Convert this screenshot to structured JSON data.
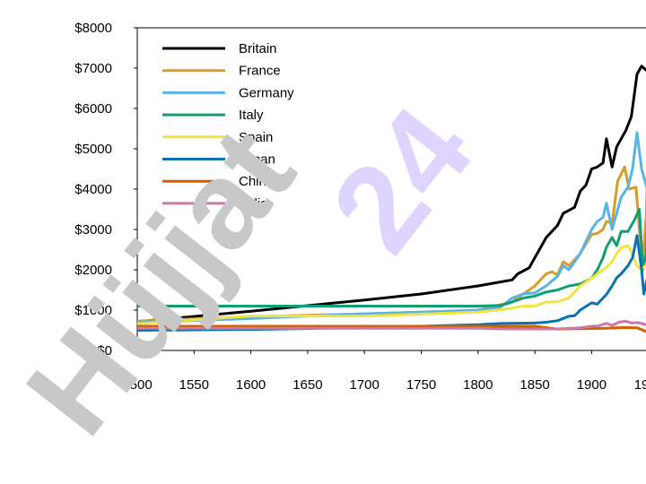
{
  "watermark": {
    "part1": "Hüjjat",
    "part2": "24",
    "part1_color": "#c8c8c8",
    "part2_color": "#dcd2ff"
  },
  "chart_data": {
    "type": "line",
    "title": "",
    "xlabel": "",
    "ylabel": "",
    "xlim": [
      1500,
      1990
    ],
    "ylim": [
      0,
      8000
    ],
    "x_ticks": [
      "1500",
      "1550",
      "1600",
      "1650",
      "1700",
      "1750",
      "1800",
      "1850",
      "1900",
      "19"
    ],
    "y_ticks": [
      "$0",
      "$1000",
      "$2000",
      "$3000",
      "$4000",
      "$5000",
      "$6000",
      "$7000",
      "$8000"
    ],
    "legend_position": "top-left",
    "grid": false,
    "series": [
      {
        "name": "Britain",
        "color": "#000000",
        "points": [
          [
            1500,
            714
          ],
          [
            1600,
            974
          ],
          [
            1700,
            1250
          ],
          [
            1750,
            1400
          ],
          [
            1800,
            1600
          ],
          [
            1820,
            1700
          ],
          [
            1830,
            1750
          ],
          [
            1835,
            1900
          ],
          [
            1845,
            2050
          ],
          [
            1850,
            2300
          ],
          [
            1860,
            2800
          ],
          [
            1870,
            3100
          ],
          [
            1875,
            3400
          ],
          [
            1885,
            3550
          ],
          [
            1890,
            3950
          ],
          [
            1895,
            4100
          ],
          [
            1900,
            4500
          ],
          [
            1905,
            4550
          ],
          [
            1910,
            4650
          ],
          [
            1913,
            5250
          ],
          [
            1918,
            4550
          ],
          [
            1922,
            5050
          ],
          [
            1930,
            5450
          ],
          [
            1935,
            5800
          ],
          [
            1940,
            6850
          ],
          [
            1944,
            7050
          ],
          [
            1950,
            6900
          ]
        ]
      },
      {
        "name": "France",
        "color": "#d69b2d",
        "points": [
          [
            1500,
            727
          ],
          [
            1600,
            841
          ],
          [
            1700,
            910
          ],
          [
            1750,
            950
          ],
          [
            1800,
            1000
          ],
          [
            1820,
            1135
          ],
          [
            1830,
            1200
          ],
          [
            1840,
            1400
          ],
          [
            1850,
            1597
          ],
          [
            1860,
            1900
          ],
          [
            1865,
            1950
          ],
          [
            1870,
            1876
          ],
          [
            1875,
            2200
          ],
          [
            1880,
            2100
          ],
          [
            1890,
            2400
          ],
          [
            1900,
            2876
          ],
          [
            1905,
            2900
          ],
          [
            1910,
            3000
          ],
          [
            1913,
            3200
          ],
          [
            1918,
            3150
          ],
          [
            1923,
            4200
          ],
          [
            1929,
            4550
          ],
          [
            1933,
            4000
          ],
          [
            1939,
            4050
          ],
          [
            1942,
            3000
          ],
          [
            1945,
            2200
          ],
          [
            1948,
            3300
          ],
          [
            1950,
            5200
          ]
        ]
      },
      {
        "name": "Germany",
        "color": "#56b4e9",
        "points": [
          [
            1500,
            688
          ],
          [
            1600,
            791
          ],
          [
            1700,
            910
          ],
          [
            1750,
            950
          ],
          [
            1800,
            1000
          ],
          [
            1820,
            1077
          ],
          [
            1830,
            1300
          ],
          [
            1840,
            1400
          ],
          [
            1850,
            1428
          ],
          [
            1860,
            1600
          ],
          [
            1870,
            1839
          ],
          [
            1875,
            2100
          ],
          [
            1880,
            2000
          ],
          [
            1890,
            2400
          ],
          [
            1900,
            3000
          ],
          [
            1905,
            3200
          ],
          [
            1910,
            3300
          ],
          [
            1913,
            3648
          ],
          [
            1918,
            3000
          ],
          [
            1922,
            3400
          ],
          [
            1926,
            3800
          ],
          [
            1932,
            4050
          ],
          [
            1936,
            4500
          ],
          [
            1940,
            5400
          ],
          [
            1944,
            4500
          ],
          [
            1950,
            3900
          ]
        ]
      },
      {
        "name": "Italy",
        "color": "#119d73",
        "points": [
          [
            1500,
            1100
          ],
          [
            1600,
            1100
          ],
          [
            1700,
            1100
          ],
          [
            1750,
            1100
          ],
          [
            1800,
            1100
          ],
          [
            1820,
            1117
          ],
          [
            1830,
            1200
          ],
          [
            1840,
            1300
          ],
          [
            1850,
            1350
          ],
          [
            1860,
            1450
          ],
          [
            1870,
            1499
          ],
          [
            1880,
            1600
          ],
          [
            1890,
            1650
          ],
          [
            1900,
            1785
          ],
          [
            1905,
            2000
          ],
          [
            1910,
            2300
          ],
          [
            1913,
            2564
          ],
          [
            1918,
            2800
          ],
          [
            1922,
            2600
          ],
          [
            1926,
            2950
          ],
          [
            1932,
            2950
          ],
          [
            1938,
            3250
          ],
          [
            1942,
            3500
          ],
          [
            1945,
            2000
          ],
          [
            1948,
            2400
          ],
          [
            1950,
            3500
          ]
        ]
      },
      {
        "name": "Spain",
        "color": "#f0e442",
        "points": [
          [
            1500,
            661
          ],
          [
            1600,
            853
          ],
          [
            1700,
            853
          ],
          [
            1750,
            900
          ],
          [
            1800,
            950
          ],
          [
            1820,
            1008
          ],
          [
            1830,
            1050
          ],
          [
            1840,
            1100
          ],
          [
            1850,
            1100
          ],
          [
            1860,
            1200
          ],
          [
            1870,
            1207
          ],
          [
            1880,
            1300
          ],
          [
            1890,
            1600
          ],
          [
            1900,
            1786
          ],
          [
            1905,
            1900
          ],
          [
            1910,
            2000
          ],
          [
            1913,
            2056
          ],
          [
            1918,
            2200
          ],
          [
            1922,
            2400
          ],
          [
            1926,
            2550
          ],
          [
            1932,
            2600
          ],
          [
            1935,
            2450
          ],
          [
            1940,
            2100
          ],
          [
            1944,
            2000
          ],
          [
            1950,
            2189
          ]
        ]
      },
      {
        "name": "Japan",
        "color": "#0a72b2",
        "points": [
          [
            1500,
            500
          ],
          [
            1600,
            520
          ],
          [
            1700,
            570
          ],
          [
            1750,
            600
          ],
          [
            1800,
            640
          ],
          [
            1820,
            669
          ],
          [
            1850,
            680
          ],
          [
            1860,
            700
          ],
          [
            1870,
            737
          ],
          [
            1880,
            850
          ],
          [
            1885,
            860
          ],
          [
            1890,
            1000
          ],
          [
            1900,
            1180
          ],
          [
            1905,
            1150
          ],
          [
            1910,
            1300
          ],
          [
            1913,
            1387
          ],
          [
            1918,
            1600
          ],
          [
            1922,
            1800
          ],
          [
            1926,
            1900
          ],
          [
            1932,
            2100
          ],
          [
            1936,
            2300
          ],
          [
            1940,
            2850
          ],
          [
            1944,
            2000
          ],
          [
            1946,
            1400
          ],
          [
            1950,
            1921
          ]
        ]
      },
      {
        "name": "China",
        "color": "#d55e00",
        "points": [
          [
            1500,
            600
          ],
          [
            1600,
            600
          ],
          [
            1700,
            600
          ],
          [
            1750,
            600
          ],
          [
            1800,
            600
          ],
          [
            1820,
            600
          ],
          [
            1850,
            600
          ],
          [
            1870,
            530
          ],
          [
            1890,
            540
          ],
          [
            1900,
            545
          ],
          [
            1913,
            552
          ],
          [
            1930,
            568
          ],
          [
            1940,
            562
          ],
          [
            1950,
            448
          ]
        ]
      },
      {
        "name": "India",
        "color": "#cc79a7",
        "points": [
          [
            1500,
            550
          ],
          [
            1600,
            550
          ],
          [
            1700,
            550
          ],
          [
            1750,
            550
          ],
          [
            1800,
            550
          ],
          [
            1820,
            533
          ],
          [
            1850,
            533
          ],
          [
            1870,
            533
          ],
          [
            1890,
            560
          ],
          [
            1900,
            599
          ],
          [
            1906,
            610
          ],
          [
            1913,
            673
          ],
          [
            1918,
            620
          ],
          [
            1924,
            700
          ],
          [
            1930,
            726
          ],
          [
            1935,
            680
          ],
          [
            1940,
            690
          ],
          [
            1944,
            670
          ],
          [
            1950,
            619
          ]
        ]
      }
    ]
  }
}
